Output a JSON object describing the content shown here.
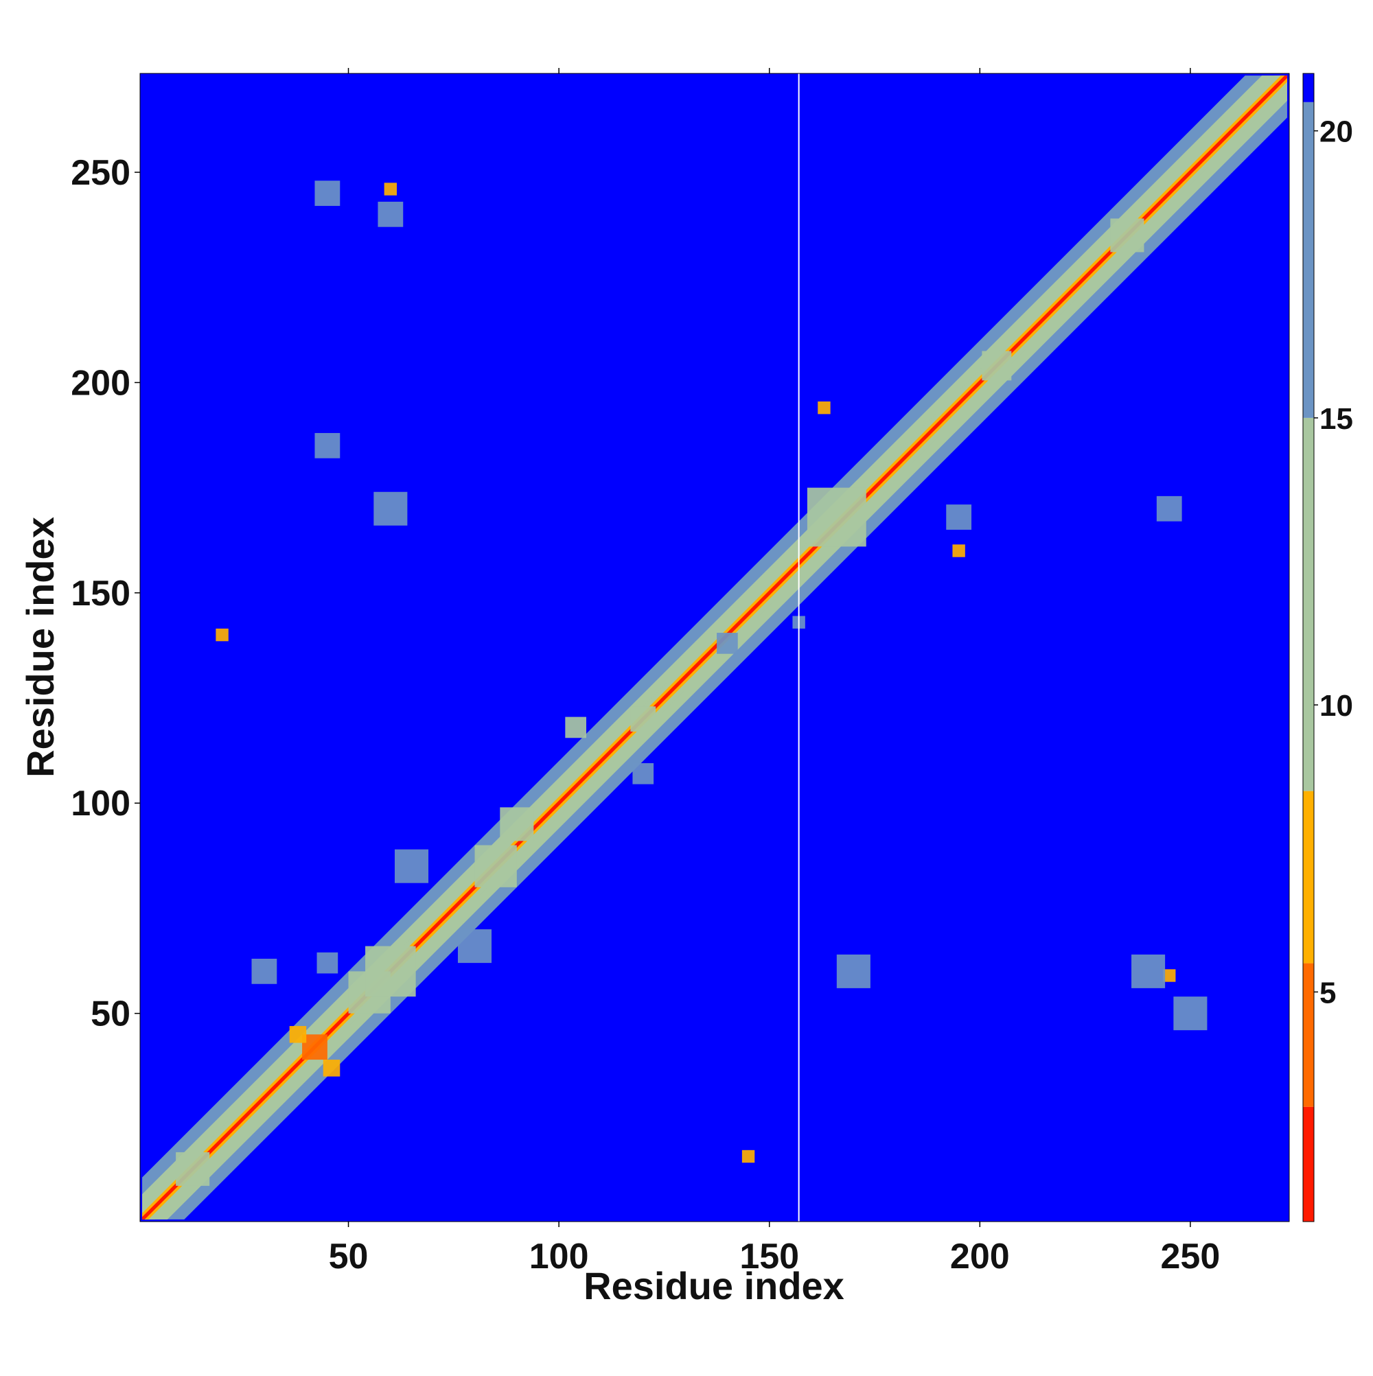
{
  "chart_data": {
    "type": "heatmap",
    "title": "",
    "xlabel": "Residue index",
    "ylabel": "Residue index",
    "xlim": [
      1,
      273
    ],
    "ylim": [
      1,
      273
    ],
    "x_ticks": [
      50,
      100,
      150,
      200,
      250
    ],
    "y_ticks": [
      50,
      100,
      150,
      200,
      250
    ],
    "x_tick_labels": [
      "50",
      "100",
      "150",
      "200",
      "250"
    ],
    "y_tick_labels": [
      "50",
      "100",
      "150",
      "200",
      "250"
    ],
    "grid": false,
    "colorbar": {
      "label": "",
      "vmin": 1,
      "vmax": 21,
      "ticks": [
        5,
        10,
        15,
        20
      ],
      "tick_labels": [
        "5",
        "10",
        "15",
        "20"
      ],
      "colors": {
        "close": "#ff1a00",
        "near": "#ff6a00",
        "mid": "#ffb000",
        "contact_band": "#a9c7a0",
        "weak": "#6c94c4",
        "far": "#0000ff"
      }
    },
    "vertical_line_x": 157,
    "features": [
      {
        "x": 13,
        "y": 13,
        "size": 8,
        "value": 9
      },
      {
        "x": 42,
        "y": 42,
        "size": 6,
        "value": 5
      },
      {
        "x": 38,
        "y": 45,
        "size": 4,
        "value": 6
      },
      {
        "x": 46,
        "y": 37,
        "size": 4,
        "value": 6
      },
      {
        "x": 55,
        "y": 55,
        "size": 10,
        "value": 14
      },
      {
        "x": 60,
        "y": 60,
        "size": 12,
        "value": 12
      },
      {
        "x": 65,
        "y": 85,
        "size": 8,
        "value": 17
      },
      {
        "x": 80,
        "y": 66,
        "size": 8,
        "value": 17
      },
      {
        "x": 85,
        "y": 85,
        "size": 10,
        "value": 11
      },
      {
        "x": 90,
        "y": 95,
        "size": 8,
        "value": 12
      },
      {
        "x": 104,
        "y": 118,
        "size": 5,
        "value": 14
      },
      {
        "x": 120,
        "y": 120,
        "size": 6,
        "value": 13
      },
      {
        "x": 120,
        "y": 107,
        "size": 5,
        "value": 15
      },
      {
        "x": 140,
        "y": 138,
        "size": 5,
        "value": 16
      },
      {
        "x": 157,
        "y": 143,
        "size": 3,
        "value": 17
      },
      {
        "x": 166,
        "y": 168,
        "size": 14,
        "value": 13
      },
      {
        "x": 163,
        "y": 194,
        "size": 3,
        "value": 6
      },
      {
        "x": 195,
        "y": 160,
        "size": 3,
        "value": 6
      },
      {
        "x": 195,
        "y": 168,
        "size": 6,
        "value": 16
      },
      {
        "x": 204,
        "y": 204,
        "size": 7,
        "value": 12
      },
      {
        "x": 235,
        "y": 235,
        "size": 8,
        "value": 13
      },
      {
        "x": 245,
        "y": 59,
        "size": 3,
        "value": 6
      },
      {
        "x": 60,
        "y": 246,
        "size": 3,
        "value": 6
      },
      {
        "x": 60,
        "y": 240,
        "size": 6,
        "value": 18
      },
      {
        "x": 45,
        "y": 245,
        "size": 6,
        "value": 18
      },
      {
        "x": 45,
        "y": 185,
        "size": 6,
        "value": 18
      },
      {
        "x": 60,
        "y": 170,
        "size": 8,
        "value": 18
      },
      {
        "x": 45,
        "y": 62,
        "size": 5,
        "value": 17
      },
      {
        "x": 30,
        "y": 60,
        "size": 6,
        "value": 18
      },
      {
        "x": 20,
        "y": 140,
        "size": 3,
        "value": 7
      },
      {
        "x": 145,
        "y": 16,
        "size": 3,
        "value": 6
      },
      {
        "x": 170,
        "y": 60,
        "size": 8,
        "value": 18
      },
      {
        "x": 240,
        "y": 60,
        "size": 8,
        "value": 18
      },
      {
        "x": 245,
        "y": 170,
        "size": 6,
        "value": 18
      },
      {
        "x": 250,
        "y": 50,
        "size": 8,
        "value": 18
      }
    ]
  }
}
